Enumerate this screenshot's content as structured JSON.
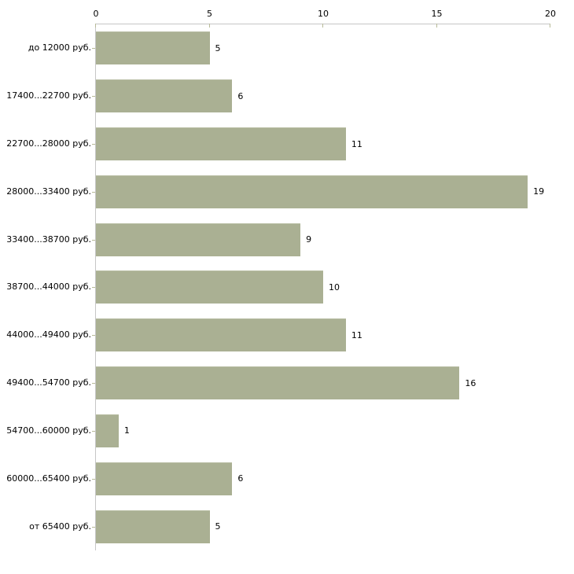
{
  "chart_data": {
    "type": "bar",
    "orientation": "horizontal",
    "title": "",
    "xlabel": "",
    "ylabel": "",
    "categories": [
      "до 12000 руб.",
      "17400...22700 руб.",
      "22700...28000 руб.",
      "28000...33400 руб.",
      "33400...38700 руб.",
      "38700...44000 руб.",
      "44000...49400 руб.",
      "49400...54700 руб.",
      "54700...60000 руб.",
      "60000...65400 руб.",
      "от 65400 руб."
    ],
    "values": [
      5,
      6,
      11,
      19,
      9,
      10,
      11,
      16,
      1,
      6,
      5
    ],
    "value_labels": [
      "5",
      "6",
      "11",
      "19",
      "9",
      "10",
      "11",
      "16",
      "1",
      "6",
      "5"
    ],
    "xlim": [
      0,
      20
    ],
    "x_ticks": [
      0,
      5,
      10,
      15,
      20
    ],
    "x_tick_labels": [
      "0",
      "5",
      "10",
      "15",
      "20"
    ],
    "axis_position": "top",
    "grid": false,
    "legend": false,
    "colors": {
      "bar_fill": "#aab093",
      "bar_top_edge": "#b8bda3",
      "axis_line": "#c6c6c6",
      "tick_mark": "#b7ba98",
      "text": "#000000",
      "background": "#ffffff"
    }
  }
}
